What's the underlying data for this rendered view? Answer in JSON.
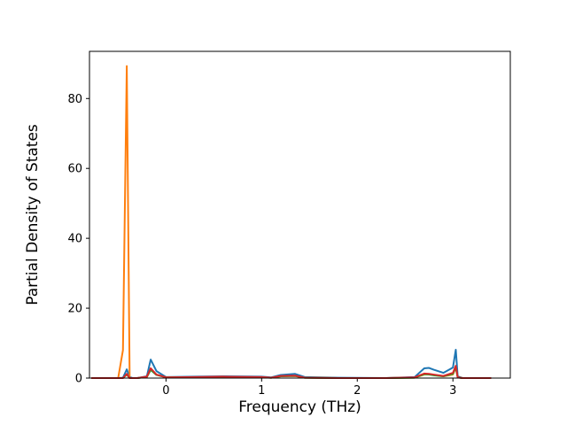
{
  "chart_data": {
    "type": "line",
    "x_label": "Frequency (THz)",
    "y_label": "Partial Density of States",
    "x": [
      -0.78,
      -0.5,
      -0.45,
      -0.41,
      -0.38,
      -0.35,
      -0.3,
      -0.2,
      -0.16,
      -0.1,
      0,
      0.3,
      0.6,
      1.0,
      1.1,
      1.2,
      1.35,
      1.45,
      1.8,
      2.3,
      2.6,
      2.7,
      2.75,
      2.8,
      2.9,
      3.0,
      3.03,
      3.05,
      3.1,
      3.4
    ],
    "series": [
      {
        "color": "#1f77b4",
        "values": [
          0,
          0,
          0.1,
          2.5,
          0.3,
          0,
          0,
          0.5,
          5.3,
          2,
          0.3,
          0.4,
          0.5,
          0.4,
          0.2,
          0.9,
          1.2,
          0.3,
          0.1,
          0,
          0.3,
          2.8,
          2.9,
          2.4,
          1.5,
          3,
          8.1,
          0.5,
          0,
          0
        ]
      },
      {
        "color": "#ff7f0e",
        "values": [
          0,
          0,
          8,
          89.3,
          0,
          0,
          0,
          0.3,
          2.5,
          1,
          0.2,
          0.2,
          0.3,
          0.2,
          0.1,
          0.5,
          0.6,
          0.1,
          0,
          0,
          0.1,
          1,
          1.1,
          0.9,
          0.5,
          1,
          3,
          0.2,
          0,
          0
        ]
      },
      {
        "color": "#2ca02c",
        "values": [
          0,
          0,
          0,
          1,
          0,
          0,
          0,
          0.3,
          2.3,
          0.9,
          0.2,
          0.2,
          0.3,
          0.2,
          0.1,
          0.5,
          0.6,
          0.1,
          0,
          0,
          0.1,
          1.1,
          1,
          0.8,
          0.5,
          1.2,
          3.1,
          0.2,
          0,
          0
        ]
      },
      {
        "color": "#d62728",
        "values": [
          0,
          0,
          0,
          1.2,
          0,
          0,
          0,
          0.4,
          2.8,
          1,
          0.2,
          0.3,
          0.4,
          0.3,
          0.1,
          0.6,
          0.7,
          0.1,
          0,
          0,
          0.2,
          1.3,
          1.2,
          1,
          0.6,
          1.5,
          3.5,
          0.2,
          0,
          0
        ]
      }
    ],
    "xlim": [
      -0.8,
      3.6
    ],
    "ylim": [
      0,
      93.5
    ],
    "xticks": [
      0,
      1,
      2,
      3
    ],
    "yticks": [
      0,
      20,
      40,
      60,
      80
    ]
  }
}
